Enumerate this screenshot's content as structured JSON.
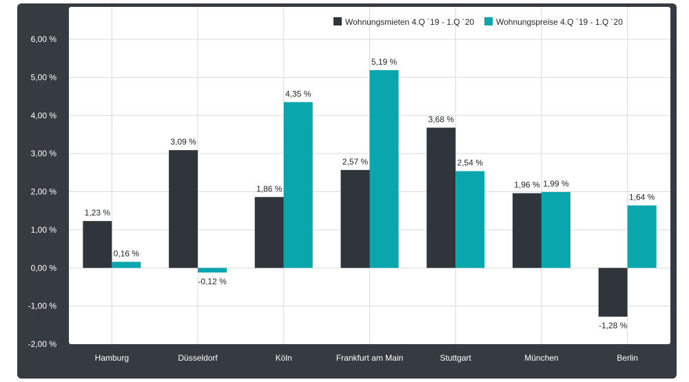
{
  "colors": {
    "background": "#353b41",
    "plot_background": "#ffffff",
    "grid": "#d7d9db",
    "mieten": "#2f353a",
    "preise": "#0aa6ad"
  },
  "chart_data": {
    "type": "bar",
    "categories": [
      "Hamburg",
      "Düsseldorf",
      "Köln",
      "Frankfurt am Main",
      "Stuttgart",
      "München",
      "Berlin"
    ],
    "series": [
      {
        "name": "Wohnungsmieten 4.Q ´19 - 1.Q ´20",
        "values": [
          1.23,
          3.09,
          1.86,
          2.57,
          3.68,
          1.96,
          -1.28
        ],
        "labels": [
          "1,23 %",
          "3,09 %",
          "1,86 %",
          "2,57 %",
          "3,68 %",
          "1,96 %",
          "-1,28 %"
        ],
        "color": "#2f353a"
      },
      {
        "name": "Wohnungspreise 4.Q ´19 - 1.Q ´20",
        "values": [
          0.16,
          -0.12,
          4.35,
          5.19,
          2.54,
          1.99,
          1.64
        ],
        "labels": [
          "0,16 %",
          "-0,12 %",
          "4,35 %",
          "5,19 %",
          "2,54 %",
          "1,99 %",
          "1,64 %"
        ],
        "color": "#0aa6ad"
      }
    ],
    "ylim": [
      -2,
      6
    ],
    "yticks": [
      -2,
      -1,
      0,
      1,
      2,
      3,
      4,
      5,
      6
    ],
    "ytick_labels": [
      "-2,00 %",
      "-1,00 %",
      "0,00 %",
      "1,00 %",
      "2,00 %",
      "3,00 %",
      "4,00 %",
      "5,00 %",
      "6,00 %"
    ],
    "title": "",
    "xlabel": "",
    "ylabel": "",
    "grid": true,
    "legend_position": "top-right"
  }
}
